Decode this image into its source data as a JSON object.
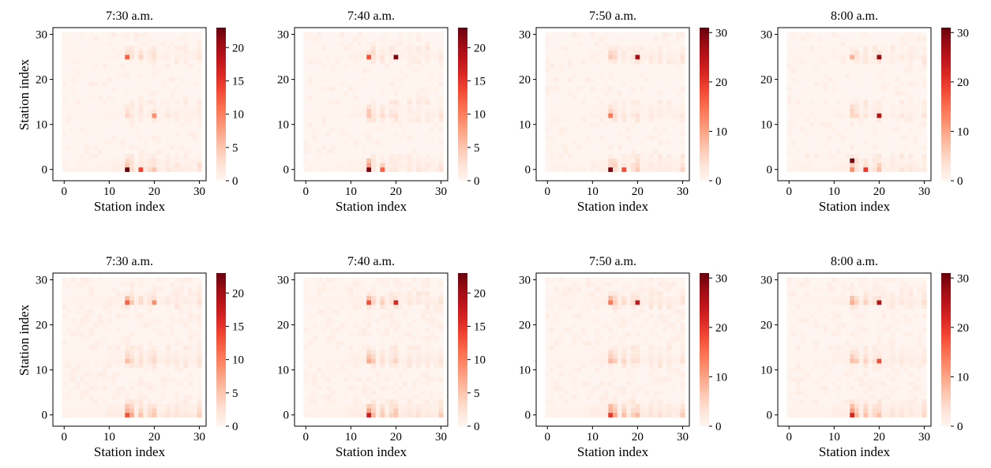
{
  "figure": {
    "xlabel": "Station index",
    "ylabel": "Station index"
  },
  "chart_data": [
    {
      "type": "heatmap",
      "row": "top",
      "title": "7:30 a.m.",
      "xlabel": "Station index",
      "ylabel": "Station index",
      "xlim": [
        0,
        31
      ],
      "ylim": [
        0,
        31
      ],
      "xticks": [
        "0",
        "10",
        "20",
        "30"
      ],
      "yticks": [
        "0",
        "10",
        "20",
        "30"
      ],
      "colorbar": {
        "max": 23,
        "ticks": [
          "0",
          "5",
          "10",
          "15",
          "20"
        ],
        "cmap": "Reds"
      },
      "hot_rows": [
        0,
        1,
        2,
        12,
        13,
        14,
        25,
        26
      ],
      "hot_cols": [
        14,
        15,
        17,
        19,
        20,
        23,
        25,
        27,
        30
      ],
      "peak_cells": [
        {
          "row": 0,
          "col": 14,
          "value": 23
        },
        {
          "row": 0,
          "col": 17,
          "value": 14
        },
        {
          "row": 25,
          "col": 14,
          "value": 12
        },
        {
          "row": 12,
          "col": 20,
          "value": 9
        }
      ]
    },
    {
      "type": "heatmap",
      "row": "top",
      "title": "7:40 a.m.",
      "xlabel": "Station index",
      "ylabel": "Station index",
      "xlim": [
        0,
        31
      ],
      "ylim": [
        0,
        31
      ],
      "xticks": [
        "0",
        "10",
        "20",
        "30"
      ],
      "yticks": [
        "0",
        "10",
        "20",
        "30"
      ],
      "colorbar": {
        "max": 23,
        "ticks": [
          "0",
          "5",
          "10",
          "15",
          "20"
        ],
        "cmap": "Reds"
      },
      "hot_rows": [
        0,
        1,
        2,
        12,
        13,
        14,
        25,
        26
      ],
      "hot_cols": [
        14,
        15,
        17,
        19,
        20,
        23,
        25,
        27,
        30
      ],
      "peak_cells": [
        {
          "row": 0,
          "col": 14,
          "value": 22
        },
        {
          "row": 25,
          "col": 20,
          "value": 22
        },
        {
          "row": 25,
          "col": 14,
          "value": 13
        },
        {
          "row": 0,
          "col": 17,
          "value": 12
        }
      ]
    },
    {
      "type": "heatmap",
      "row": "top",
      "title": "7:50 a.m.",
      "xlabel": "Station index",
      "ylabel": "Station index",
      "xlim": [
        0,
        31
      ],
      "ylim": [
        0,
        31
      ],
      "xticks": [
        "0",
        "10",
        "20",
        "30"
      ],
      "yticks": [
        "0",
        "10",
        "20",
        "30"
      ],
      "colorbar": {
        "max": 31,
        "ticks": [
          "0",
          "10",
          "20",
          "30"
        ],
        "cmap": "Reds"
      },
      "hot_rows": [
        0,
        1,
        2,
        12,
        13,
        14,
        25,
        26
      ],
      "hot_cols": [
        14,
        15,
        17,
        19,
        20,
        23,
        25,
        27,
        30
      ],
      "peak_cells": [
        {
          "row": 0,
          "col": 14,
          "value": 30
        },
        {
          "row": 25,
          "col": 20,
          "value": 27
        },
        {
          "row": 0,
          "col": 17,
          "value": 18
        },
        {
          "row": 12,
          "col": 14,
          "value": 14
        }
      ]
    },
    {
      "type": "heatmap",
      "row": "top",
      "title": "8:00 a.m.",
      "xlabel": "Station index",
      "ylabel": "Station index",
      "xlim": [
        0,
        31
      ],
      "ylim": [
        0,
        31
      ],
      "xticks": [
        "0",
        "10",
        "20",
        "30"
      ],
      "yticks": [
        "0",
        "10",
        "20",
        "30"
      ],
      "colorbar": {
        "max": 31,
        "ticks": [
          "0",
          "10",
          "20",
          "30"
        ],
        "cmap": "Reds"
      },
      "hot_rows": [
        0,
        1,
        2,
        12,
        13,
        14,
        25,
        26
      ],
      "hot_cols": [
        14,
        15,
        17,
        19,
        20,
        23,
        25,
        27,
        30
      ],
      "peak_cells": [
        {
          "row": 2,
          "col": 14,
          "value": 30
        },
        {
          "row": 25,
          "col": 20,
          "value": 28
        },
        {
          "row": 12,
          "col": 20,
          "value": 26
        },
        {
          "row": 0,
          "col": 17,
          "value": 20
        }
      ]
    },
    {
      "type": "heatmap",
      "row": "bottom",
      "title": "7:30 a.m.",
      "xlabel": "Station index",
      "ylabel": "Station index",
      "xlim": [
        0,
        31
      ],
      "ylim": [
        0,
        31
      ],
      "xticks": [
        "0",
        "10",
        "20",
        "30"
      ],
      "yticks": [
        "0",
        "10",
        "20",
        "30"
      ],
      "colorbar": {
        "max": 23,
        "ticks": [
          "0",
          "5",
          "10",
          "15",
          "20"
        ],
        "cmap": "Reds"
      },
      "hot_rows": [
        0,
        1,
        2,
        12,
        13,
        14,
        25,
        26
      ],
      "hot_cols": [
        14,
        15,
        17,
        19,
        20,
        23,
        25,
        27,
        30
      ],
      "peak_cells": [
        {
          "row": 0,
          "col": 14,
          "value": 13
        },
        {
          "row": 25,
          "col": 14,
          "value": 12
        },
        {
          "row": 25,
          "col": 20,
          "value": 9
        }
      ]
    },
    {
      "type": "heatmap",
      "row": "bottom",
      "title": "7:40 a.m.",
      "xlabel": "Station index",
      "ylabel": "Station index",
      "xlim": [
        0,
        31
      ],
      "ylim": [
        0,
        31
      ],
      "xticks": [
        "0",
        "10",
        "20",
        "30"
      ],
      "yticks": [
        "0",
        "10",
        "20",
        "30"
      ],
      "colorbar": {
        "max": 23,
        "ticks": [
          "0",
          "5",
          "10",
          "15",
          "20"
        ],
        "cmap": "Reds"
      },
      "hot_rows": [
        0,
        1,
        2,
        12,
        13,
        14,
        25,
        26
      ],
      "hot_cols": [
        14,
        15,
        17,
        19,
        20,
        23,
        25,
        27,
        30
      ],
      "peak_cells": [
        {
          "row": 0,
          "col": 14,
          "value": 17
        },
        {
          "row": 25,
          "col": 20,
          "value": 16
        },
        {
          "row": 25,
          "col": 14,
          "value": 13
        }
      ]
    },
    {
      "type": "heatmap",
      "row": "bottom",
      "title": "7:50 a.m.",
      "xlabel": "Station index",
      "ylabel": "Station index",
      "xlim": [
        0,
        31
      ],
      "ylim": [
        0,
        31
      ],
      "xticks": [
        "0",
        "10",
        "20",
        "30"
      ],
      "yticks": [
        "0",
        "10",
        "20",
        "30"
      ],
      "colorbar": {
        "max": 31,
        "ticks": [
          "0",
          "10",
          "20",
          "30"
        ],
        "cmap": "Reds"
      },
      "hot_rows": [
        0,
        1,
        2,
        12,
        13,
        14,
        25,
        26
      ],
      "hot_cols": [
        14,
        15,
        17,
        19,
        20,
        23,
        25,
        27,
        30
      ],
      "peak_cells": [
        {
          "row": 0,
          "col": 14,
          "value": 20
        },
        {
          "row": 25,
          "col": 20,
          "value": 24
        },
        {
          "row": 25,
          "col": 14,
          "value": 14
        }
      ]
    },
    {
      "type": "heatmap",
      "row": "bottom",
      "title": "8:00 a.m.",
      "xlabel": "Station index",
      "ylabel": "Station index",
      "xlim": [
        0,
        31
      ],
      "ylim": [
        0,
        31
      ],
      "xticks": [
        "0",
        "10",
        "20",
        "30"
      ],
      "yticks": [
        "0",
        "10",
        "20",
        "30"
      ],
      "colorbar": {
        "max": 31,
        "ticks": [
          "0",
          "10",
          "20",
          "30"
        ],
        "cmap": "Reds"
      },
      "hot_rows": [
        0,
        1,
        2,
        12,
        13,
        14,
        25,
        26
      ],
      "hot_cols": [
        14,
        15,
        17,
        19,
        20,
        23,
        25,
        27,
        30
      ],
      "peak_cells": [
        {
          "row": 0,
          "col": 14,
          "value": 22
        },
        {
          "row": 25,
          "col": 20,
          "value": 26
        },
        {
          "row": 12,
          "col": 20,
          "value": 18
        }
      ]
    }
  ]
}
